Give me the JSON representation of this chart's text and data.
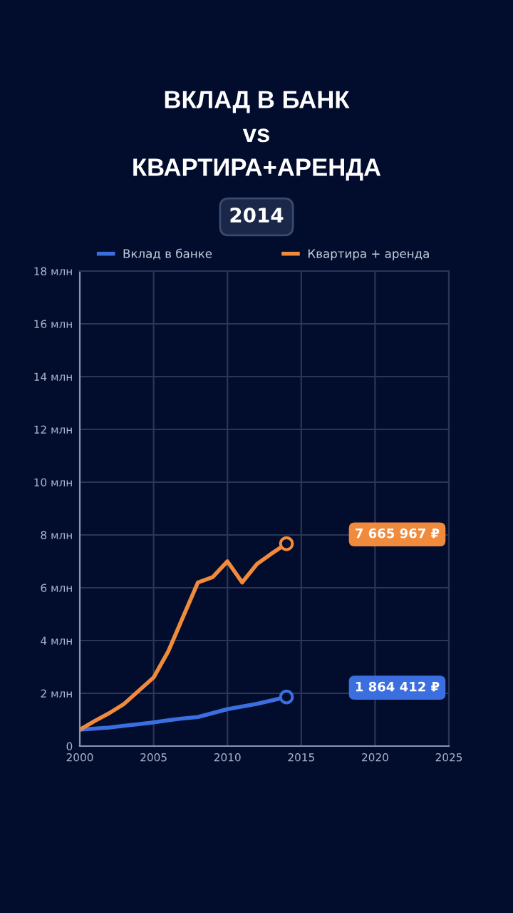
{
  "chart_data": {
    "type": "line",
    "title": "ВКЛАД В БАНК\nvs\nКВАРТИРА+АРЕНДА",
    "subtitle": "2014",
    "x": [
      2000,
      2001,
      2002,
      2003,
      2004,
      2005,
      2006,
      2007,
      2008,
      2009,
      2010,
      2011,
      2012,
      2013,
      2014
    ],
    "series": [
      {
        "name": "Вклад в банке",
        "color": "#3b6fe0",
        "values": [
          0.62,
          0.66,
          0.7,
          0.77,
          0.83,
          0.9,
          0.98,
          1.05,
          1.1,
          1.25,
          1.4,
          1.5,
          1.6,
          1.73,
          1.86
        ]
      },
      {
        "name": "Квартира + аренда",
        "color": "#f08a3c",
        "values": [
          0.62,
          0.95,
          1.25,
          1.6,
          2.1,
          2.6,
          3.6,
          4.9,
          6.2,
          6.4,
          7.0,
          6.2,
          6.9,
          7.3,
          7.67
        ]
      }
    ],
    "annotations": [
      "1 864 412 ₽",
      "7 665 967 ₽"
    ],
    "xlim": [
      2000,
      2025
    ],
    "xticks": [
      2000,
      2005,
      2010,
      2015,
      2020,
      2025
    ],
    "ylim": [
      0,
      18
    ],
    "yticks": [
      0,
      {
        "value": 2,
        "label": "2 млн"
      },
      {
        "value": 4,
        "label": "4 млн"
      },
      {
        "value": 6,
        "label": "6 млн"
      },
      {
        "value": 8,
        "label": "8 млн"
      },
      {
        "value": 10,
        "label": "10 млн"
      },
      {
        "value": 12,
        "label": "12 млн"
      },
      {
        "value": 14,
        "label": "14 млн"
      },
      {
        "value": 16,
        "label": "16 млн"
      },
      {
        "value": 18,
        "label": "18 млн"
      }
    ],
    "grid": true,
    "legend": "top",
    "line_style": "solid"
  }
}
